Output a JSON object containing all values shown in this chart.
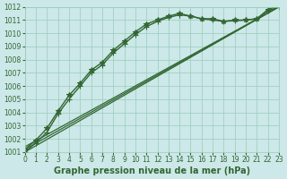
{
  "title": "Graphe pression niveau de la mer (hPa)",
  "bg_color": "#cce8e8",
  "grid_color": "#99ccbb",
  "line_color": "#336633",
  "marker_color": "#336633",
  "xlim": [
    0,
    23
  ],
  "ylim": [
    1001,
    1012
  ],
  "xticks": [
    0,
    1,
    2,
    3,
    4,
    5,
    6,
    7,
    8,
    9,
    10,
    11,
    12,
    13,
    14,
    15,
    16,
    17,
    18,
    19,
    20,
    21,
    22,
    23
  ],
  "yticks": [
    1001,
    1002,
    1003,
    1004,
    1005,
    1006,
    1007,
    1008,
    1009,
    1010,
    1011,
    1012
  ],
  "series": [
    {
      "x": [
        0,
        1,
        2,
        3,
        4,
        5,
        6,
        7,
        8,
        9,
        10,
        11,
        12,
        13,
        14,
        15,
        16,
        17,
        18,
        19,
        20,
        21,
        22,
        23
      ],
      "y": [
        1001.2,
        1001.9,
        1002.8,
        1004.1,
        1005.3,
        1006.2,
        1007.2,
        1007.8,
        1008.7,
        1009.4,
        1010.1,
        1010.7,
        1011.0,
        1011.3,
        1011.5,
        1011.3,
        1011.1,
        1011.1,
        1010.9,
        1011.0,
        1011.0,
        1011.1,
        1011.8,
        1012.1
      ],
      "marker": "*",
      "lw": 1.0,
      "ms": 4
    },
    {
      "x": [
        0,
        1,
        2,
        3,
        4,
        5,
        6,
        7,
        8,
        9,
        10,
        11,
        12,
        13,
        14,
        15,
        16,
        17,
        18,
        19,
        20,
        21,
        22,
        23
      ],
      "y": [
        1001.0,
        1001.7,
        1002.5,
        1003.9,
        1005.0,
        1006.0,
        1007.0,
        1007.6,
        1008.5,
        1009.2,
        1009.9,
        1010.5,
        1010.9,
        1011.2,
        1011.4,
        1011.3,
        1011.1,
        1011.0,
        1010.9,
        1010.95,
        1011.0,
        1011.1,
        1011.7,
        1012.0
      ],
      "marker": "+",
      "lw": 1.0,
      "ms": 4
    },
    {
      "x": [
        0,
        23
      ],
      "y": [
        1001.0,
        1012.0
      ],
      "marker": null,
      "lw": 0.9,
      "ms": 0
    },
    {
      "x": [
        0,
        23
      ],
      "y": [
        1001.2,
        1012.0
      ],
      "marker": null,
      "lw": 0.9,
      "ms": 0
    },
    {
      "x": [
        0,
        23
      ],
      "y": [
        1001.4,
        1012.0
      ],
      "marker": null,
      "lw": 0.9,
      "ms": 0
    }
  ],
  "tick_fontsize": 5.5,
  "title_fontsize": 7
}
